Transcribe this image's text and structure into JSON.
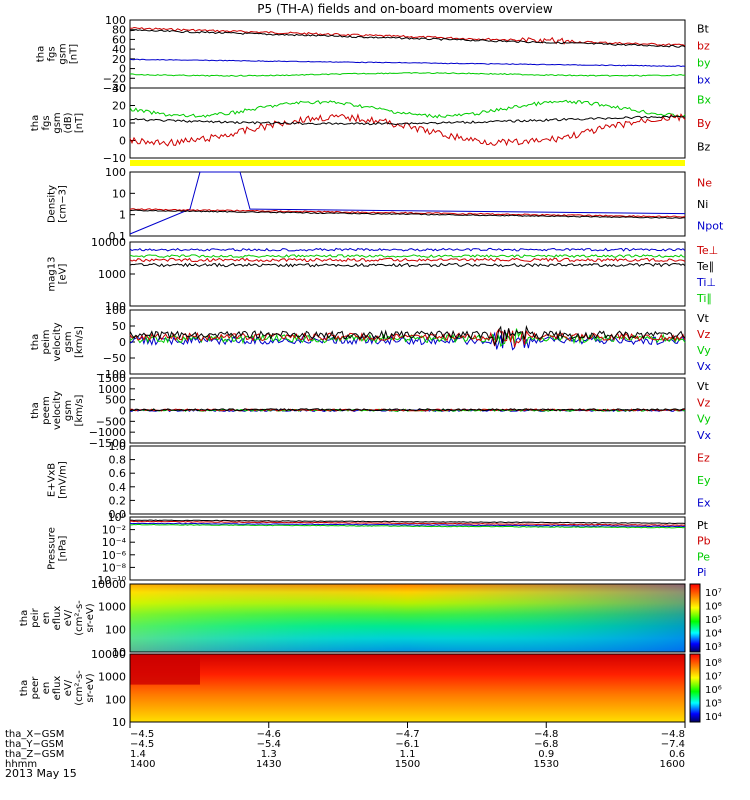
{
  "title": "P5 (TH-A) fields and on-board moments overview",
  "date": "2013 May 15",
  "colors": {
    "black": "#000000",
    "red": "#cc0000",
    "green": "#00cc00",
    "blue": "#0000cc",
    "yellow": "#ffff00"
  },
  "panels": [
    {
      "id": "fgs",
      "ylabel": [
        "tha",
        "fgs",
        "gsm",
        "[nT]"
      ],
      "yticks": [
        "100",
        "80",
        "60",
        "40",
        "20",
        "0",
        "−20",
        "−40"
      ],
      "legend": [
        {
          "t": "Bt",
          "c": "black"
        },
        {
          "t": "bz",
          "c": "red"
        },
        {
          "t": "by",
          "c": "green"
        },
        {
          "t": "bx",
          "c": "blue"
        }
      ]
    },
    {
      "id": "fgsgsm",
      "ylabel": [
        "tha",
        "fgs",
        "gsm",
        "(dB)",
        "[nT]"
      ],
      "yticks": [
        "30",
        "20",
        "10",
        "0",
        "−10"
      ],
      "legend": [
        {
          "t": "Bx",
          "c": "green"
        },
        {
          "t": "By",
          "c": "red"
        },
        {
          "t": "Bz",
          "c": "black"
        }
      ]
    },
    {
      "id": "density",
      "ylabel": [
        "Density",
        "[cm−3]"
      ],
      "yticks": [
        "100",
        "10",
        "1",
        "0.1"
      ],
      "legend": [
        {
          "t": "Ne",
          "c": "red"
        },
        {
          "t": "Ni",
          "c": "black"
        },
        {
          "t": "Npot",
          "c": "blue"
        }
      ]
    },
    {
      "id": "temp",
      "ylabel": [
        "mag13",
        "[eV]"
      ],
      "yticks": [
        "10000",
        "1000",
        "100"
      ],
      "legend": [
        {
          "t": "Te⊥",
          "c": "red"
        },
        {
          "t": "Te∥",
          "c": "black"
        },
        {
          "t": "Ti⊥",
          "c": "blue"
        },
        {
          "t": "Ti∥",
          "c": "green"
        }
      ]
    },
    {
      "id": "peirvel",
      "ylabel": [
        "tha",
        "peim",
        "velocity",
        "gsm",
        "[km/s]"
      ],
      "yticks": [
        "100",
        "50",
        "0",
        "−50",
        "−100"
      ],
      "legend": [
        {
          "t": "Vt",
          "c": "black"
        },
        {
          "t": "Vz",
          "c": "red"
        },
        {
          "t": "Vy",
          "c": "green"
        },
        {
          "t": "Vx",
          "c": "blue"
        }
      ]
    },
    {
      "id": "peevel",
      "ylabel": [
        "tha",
        "peem",
        "velocity",
        "gsm",
        "[km/s]"
      ],
      "yticks": [
        "1500",
        "1000",
        "500",
        "0",
        "−500",
        "−1000",
        "−1500"
      ],
      "legend": [
        {
          "t": "Vt",
          "c": "black"
        },
        {
          "t": "Vz",
          "c": "red"
        },
        {
          "t": "Vy",
          "c": "green"
        },
        {
          "t": "Vx",
          "c": "blue"
        }
      ]
    },
    {
      "id": "efield",
      "ylabel": [
        "E+VxB",
        "[mV/m]"
      ],
      "yticks": [
        "1.0",
        "0.8",
        "0.6",
        "0.4",
        "0.2",
        "0.0"
      ],
      "legend": [
        {
          "t": "Ez",
          "c": "red"
        },
        {
          "t": "Ey",
          "c": "green"
        },
        {
          "t": "Ex",
          "c": "blue"
        }
      ]
    },
    {
      "id": "pressure",
      "ylabel": [
        "Pressure",
        "[nPa]"
      ],
      "yticks": [
        "10⁰",
        "10⁻²",
        "10⁻⁴",
        "10⁻⁶",
        "10⁻⁸",
        "10⁻¹⁰"
      ],
      "legend": [
        {
          "t": "Pt",
          "c": "black"
        },
        {
          "t": "Pb",
          "c": "red"
        },
        {
          "t": "Pe",
          "c": "green"
        },
        {
          "t": "Pi",
          "c": "blue"
        }
      ]
    },
    {
      "id": "peirspec",
      "ylabel": [
        "tha",
        "peir",
        "en",
        "eflux",
        "eV/",
        "(cm²-s-",
        "sr-eV)"
      ],
      "yticks": [
        "10000",
        "1000",
        "100",
        "10"
      ],
      "cbticks": [
        "10⁷",
        "10⁶",
        "10⁵",
        "10⁴",
        "10³"
      ]
    },
    {
      "id": "peerspec",
      "ylabel": [
        "tha",
        "peer",
        "en",
        "eflux",
        "eV/",
        "(cm²-s-",
        "sr-eV)"
      ],
      "yticks": [
        "10000",
        "1000",
        "100",
        "10"
      ],
      "cbticks": [
        "10⁸",
        "10⁷",
        "10⁶",
        "10⁵",
        "10⁴"
      ]
    }
  ],
  "xaxis": {
    "rows": [
      {
        "label": "tha_X−GSM",
        "values": [
          "−4.5",
          "−4.6",
          "−4.7",
          "−4.8",
          "−4.8"
        ]
      },
      {
        "label": "tha_Y−GSM",
        "values": [
          "−4.5",
          "−5.4",
          "−6.1",
          "−6.8",
          "−7.4"
        ]
      },
      {
        "label": "tha_Z−GSM",
        "values": [
          "1.4",
          "1.3",
          "1.1",
          "0.9",
          "0.6"
        ]
      },
      {
        "label": "hhmm",
        "values": [
          "1400",
          "1430",
          "1500",
          "1530",
          "1600"
        ]
      }
    ]
  }
}
